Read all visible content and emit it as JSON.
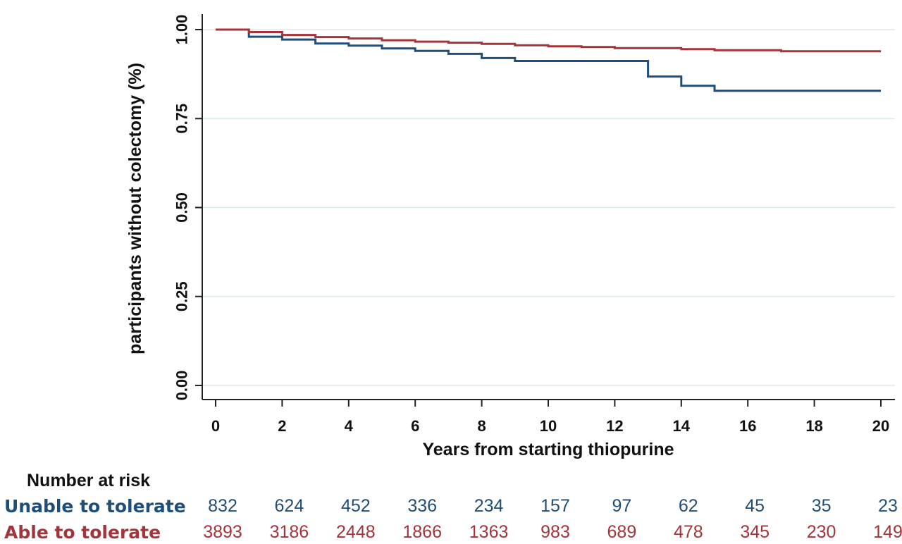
{
  "chart_data": {
    "type": "line",
    "step": true,
    "title": "",
    "xlabel": "Years from starting thiopurine",
    "ylabel": "participants without colectomy (%)",
    "xlim": [
      0,
      20
    ],
    "ylim": [
      0,
      1
    ],
    "x_ticks": [
      "0",
      "2",
      "4",
      "6",
      "8",
      "10",
      "12",
      "14",
      "16",
      "18",
      "20"
    ],
    "y_ticks": [
      "0.00",
      "0.25",
      "0.50",
      "0.75",
      "1.00"
    ],
    "grid": "horizontal",
    "series": [
      {
        "name": "Unable to tolerate",
        "color": "#1f4e79",
        "x": [
          0,
          1,
          2,
          3,
          4,
          5,
          6,
          7,
          8,
          9,
          13,
          14,
          15,
          20
        ],
        "y": [
          1.0,
          0.98,
          0.972,
          0.961,
          0.955,
          0.947,
          0.94,
          0.932,
          0.92,
          0.912,
          0.868,
          0.842,
          0.828,
          0.828
        ]
      },
      {
        "name": "Able to tolerate",
        "color": "#a4343a",
        "x": [
          0,
          1,
          2,
          3,
          4,
          5,
          6,
          7,
          8,
          9,
          10,
          11,
          12,
          14,
          15,
          17,
          20
        ],
        "y": [
          1.0,
          0.993,
          0.985,
          0.979,
          0.975,
          0.97,
          0.966,
          0.963,
          0.96,
          0.956,
          0.953,
          0.951,
          0.948,
          0.945,
          0.942,
          0.939,
          0.939
        ]
      }
    ]
  },
  "risk_table": {
    "title": "Number at risk",
    "rows": [
      {
        "label": "Unable to tolerate",
        "color": "#1f4e79",
        "values": [
          "832",
          "624",
          "452",
          "336",
          "234",
          "157",
          "97",
          "62",
          "45",
          "35",
          "23"
        ]
      },
      {
        "label": "Able to tolerate",
        "color": "#a4343a",
        "values": [
          "3893",
          "3186",
          "2448",
          "1866",
          "1363",
          "983",
          "689",
          "478",
          "345",
          "230",
          "149"
        ]
      }
    ]
  }
}
